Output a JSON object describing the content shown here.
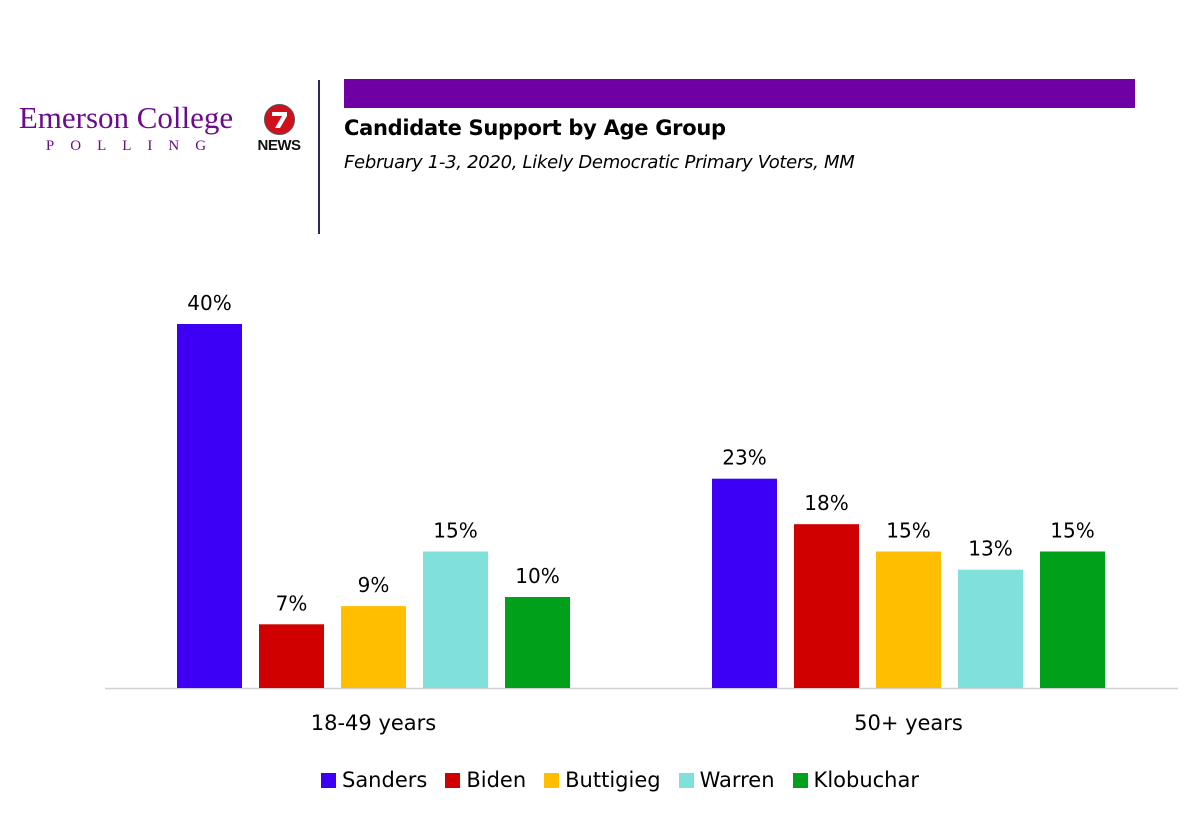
{
  "branding": {
    "emerson_name": "Emerson College",
    "emerson_sub": "POLLING",
    "news_number": "7",
    "news_word": "NEWS"
  },
  "colors": {
    "title_bar": "#6f00a3",
    "brand_purple": "#6a0c8c"
  },
  "chart_data": {
    "type": "bar",
    "title": "Candidate Support by Age Group",
    "subtitle": "February 1-3, 2020, Likely Democratic Primary Voters, MM",
    "categories": [
      "18-49 years",
      "50+ years"
    ],
    "series": [
      {
        "name": "Sanders",
        "color": "#3d00f5",
        "values": [
          40,
          23
        ],
        "labels": [
          "40%",
          "23%"
        ]
      },
      {
        "name": "Biden",
        "color": "#d10000",
        "values": [
          7,
          18
        ],
        "labels": [
          "7%",
          "18%"
        ]
      },
      {
        "name": "Buttigieg",
        "color": "#ffbf00",
        "values": [
          9,
          15
        ],
        "labels": [
          "9%",
          "15%"
        ]
      },
      {
        "name": "Warren",
        "color": "#80e0da",
        "values": [
          15,
          13
        ],
        "labels": [
          "15%",
          "13%"
        ]
      },
      {
        "name": "Klobuchar",
        "color": "#00a01a",
        "values": [
          10,
          15
        ],
        "labels": [
          "10%",
          "15%"
        ]
      }
    ],
    "ylim": [
      0,
      40
    ],
    "grid": false,
    "legend_position": "bottom",
    "xlabel": "",
    "ylabel": ""
  }
}
